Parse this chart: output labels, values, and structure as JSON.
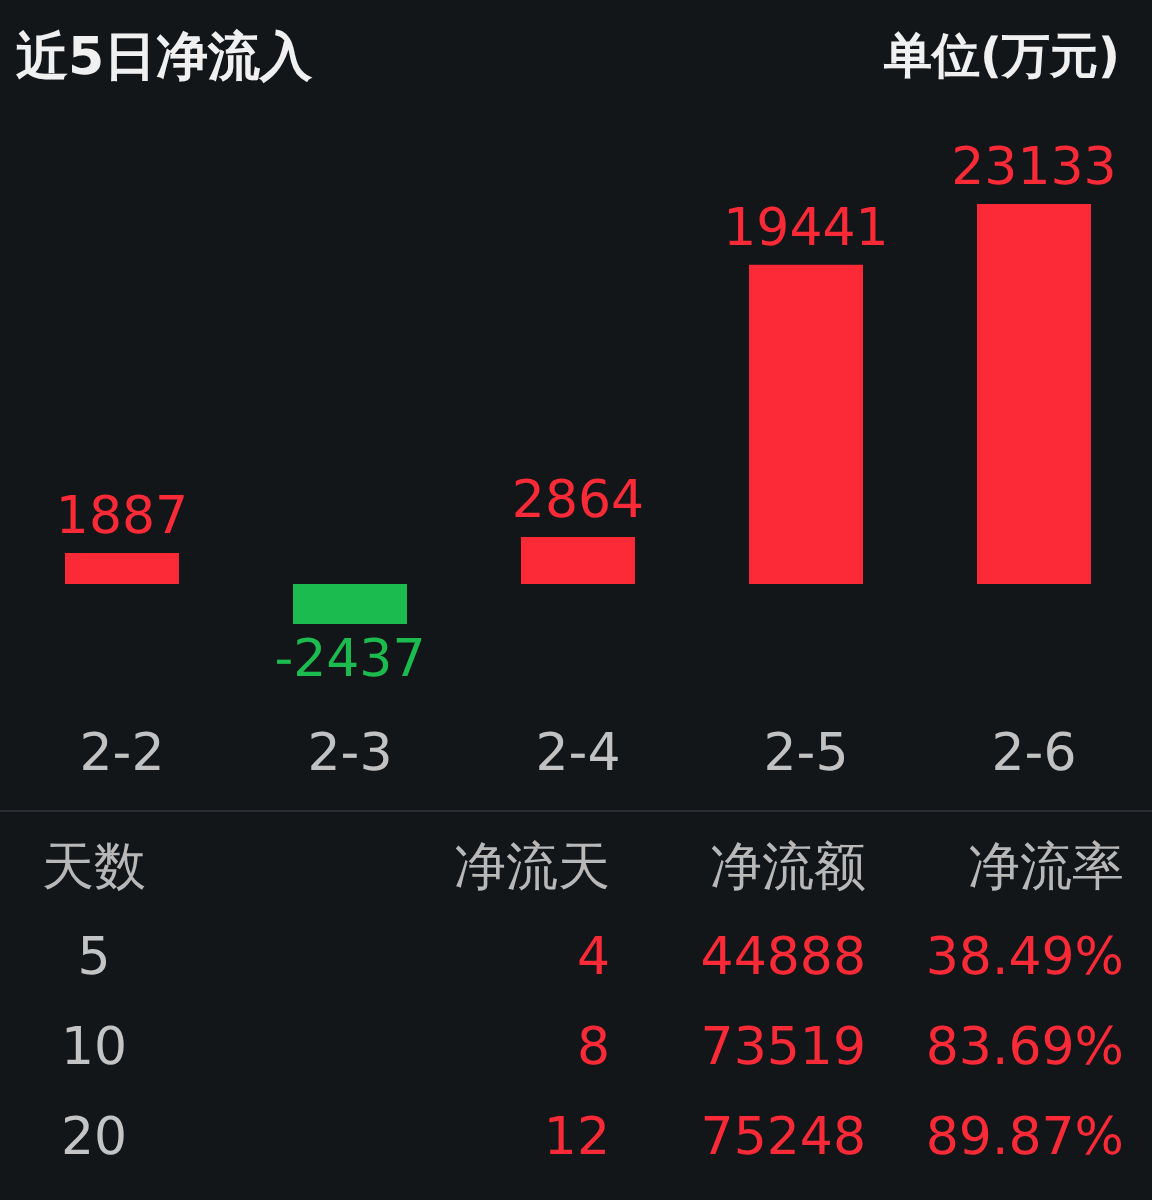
{
  "chart_data": [
    {
      "type": "bar",
      "title": "近5日净流入",
      "annotations": [
        "单位(万元)"
      ],
      "categories": [
        "2-2",
        "2-3",
        "2-4",
        "2-5",
        "2-6"
      ],
      "values": [
        1887,
        -2437,
        2864,
        19441,
        23133
      ],
      "colors": [
        "#fc2a37",
        "#1cbb4f",
        "#fc2a37",
        "#fc2a37",
        "#fc2a37"
      ],
      "data_labels": true,
      "tick_labels": "x"
    },
    {
      "type": "other",
      "xlabel": "天数",
      "categories": [
        "5",
        "10",
        "20"
      ],
      "series": [
        {
          "name": "净流天",
          "values": [
            4,
            8,
            12
          ]
        },
        {
          "name": "净流额",
          "values": [
            44888,
            73519,
            75248
          ]
        },
        {
          "name": "净流率",
          "values": [
            38.49,
            83.69,
            89.87
          ],
          "value_labels": [
            "38.49%",
            "83.69%",
            "89.87%"
          ]
        }
      ],
      "data_labels": true
    }
  ]
}
